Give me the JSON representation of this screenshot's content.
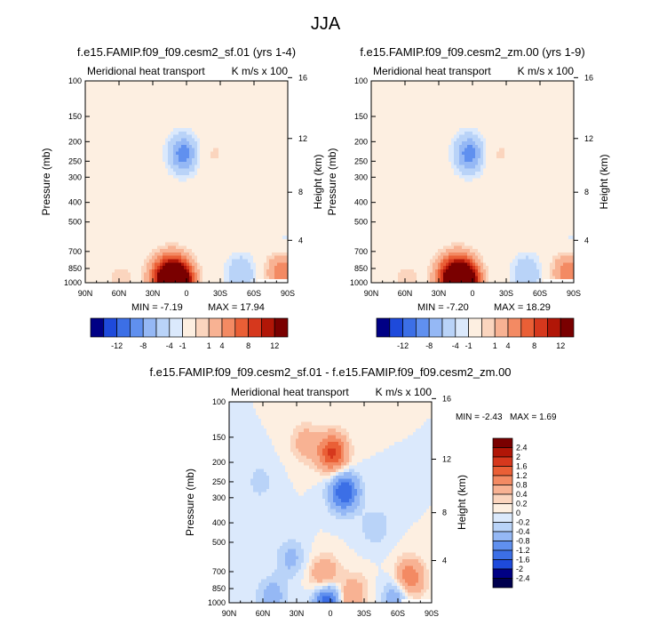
{
  "figure_title": "JJA",
  "chart_data": [
    {
      "type": "heatmap",
      "id": "p1",
      "title": "f.e15.FAMIP.f09_f09.cesm2_sf.01 (yrs 1-4)",
      "left_label": "Meridional heat transport",
      "right_label": "K m/s x 100",
      "xlabel": "",
      "ylabel": "Pressure (mb)",
      "ylabel_right": "Height (km)",
      "x_ticks": [
        "90N",
        "60N",
        "30N",
        "0",
        "30S",
        "60S",
        "90S"
      ],
      "xlim": [
        90,
        -90
      ],
      "y_ticks": [
        "100",
        "150",
        "200",
        "250",
        "300",
        "400",
        "500",
        "700",
        "850",
        "1000"
      ],
      "ylim": [
        100,
        1000
      ],
      "y_right_ticks": [
        "16",
        "12",
        "8",
        "4"
      ],
      "min_text": "MIN =  -7.19",
      "max_text": "MAX =  17.94",
      "features": [
        {
          "lat": 7,
          "p": 1000,
          "value": 17.9
        },
        {
          "lat": 20,
          "p": 950,
          "value": 10
        },
        {
          "lat": 12,
          "p": 880,
          "value": 5
        },
        {
          "lat": 3,
          "p": 230,
          "value": -7.2
        },
        {
          "lat": -23,
          "p": 230,
          "value": 1.2
        },
        {
          "lat": -48,
          "p": 900,
          "value": -4
        },
        {
          "lat": -85,
          "p": 880,
          "value": 6
        },
        {
          "lat": -88,
          "p": 650,
          "value": -1.5
        },
        {
          "lat": 58,
          "p": 970,
          "value": 1.5
        },
        {
          "lat": -15,
          "p": 450,
          "value": 0.6
        },
        {
          "lat": -70,
          "p": 400,
          "value": 0.5
        },
        {
          "lat": 70,
          "p": 200,
          "value": 0.6
        }
      ]
    },
    {
      "type": "heatmap",
      "id": "p2",
      "title": "f.e15.FAMIP.f09_f09.cesm2_zm.00 (yrs 1-9)",
      "left_label": "Meridional heat transport",
      "right_label": "K m/s x 100",
      "xlabel": "",
      "ylabel": "Pressure (mb)",
      "ylabel_right": "Height (km)",
      "x_ticks": [
        "90N",
        "60N",
        "30N",
        "0",
        "30S",
        "60S",
        "90S"
      ],
      "xlim": [
        90,
        -90
      ],
      "y_ticks": [
        "100",
        "150",
        "200",
        "250",
        "300",
        "400",
        "500",
        "700",
        "850",
        "1000"
      ],
      "ylim": [
        100,
        1000
      ],
      "y_right_ticks": [
        "16",
        "12",
        "8",
        "4"
      ],
      "min_text": "MIN =  -7.20",
      "max_text": "MAX =  18.29",
      "features": [
        {
          "lat": 7,
          "p": 1000,
          "value": 18.3
        },
        {
          "lat": 20,
          "p": 950,
          "value": 10
        },
        {
          "lat": 12,
          "p": 880,
          "value": 5
        },
        {
          "lat": 3,
          "p": 230,
          "value": -7.2
        },
        {
          "lat": -23,
          "p": 230,
          "value": 1.2
        },
        {
          "lat": -48,
          "p": 900,
          "value": -4
        },
        {
          "lat": -85,
          "p": 880,
          "value": 6
        },
        {
          "lat": -88,
          "p": 650,
          "value": -1.5
        },
        {
          "lat": 58,
          "p": 970,
          "value": 1.5
        },
        {
          "lat": -15,
          "p": 450,
          "value": 0.6
        },
        {
          "lat": -70,
          "p": 400,
          "value": 0.5
        },
        {
          "lat": 70,
          "p": 200,
          "value": 0.6
        }
      ]
    },
    {
      "type": "heatmap",
      "id": "p3",
      "title": "f.e15.FAMIP.f09_f09.cesm2_sf.01 - f.e15.FAMIP.f09_f09.cesm2_zm.00",
      "left_label": "Meridional heat transport",
      "right_label": "K m/s x 100",
      "xlabel": "",
      "ylabel": "Pressure (mb)",
      "ylabel_right": "Height (km)",
      "x_ticks": [
        "90N",
        "60N",
        "30N",
        "0",
        "30S",
        "60S",
        "90S"
      ],
      "xlim": [
        90,
        -90
      ],
      "y_ticks": [
        "100",
        "150",
        "200",
        "250",
        "300",
        "400",
        "500",
        "700",
        "850",
        "1000"
      ],
      "ylim": [
        100,
        1000
      ],
      "y_right_ticks": [
        "16",
        "12",
        "8",
        "4"
      ],
      "min_text": "MIN =  -2.43",
      "max_text": "MAX =   1.69",
      "features": [
        {
          "lat": -2,
          "p": 180,
          "value": 1.7
        },
        {
          "lat": 22,
          "p": 160,
          "value": 0.6
        },
        {
          "lat": -12,
          "p": 280,
          "value": -1.6
        },
        {
          "lat": 5,
          "p": 740,
          "value": 1.0
        },
        {
          "lat": 0,
          "p": 980,
          "value": -2.4
        },
        {
          "lat": -8,
          "p": 1000,
          "value": 1.2
        },
        {
          "lat": -70,
          "p": 760,
          "value": 1.3
        },
        {
          "lat": -60,
          "p": 920,
          "value": -0.8
        },
        {
          "lat": 52,
          "p": 930,
          "value": -0.6
        },
        {
          "lat": 35,
          "p": 600,
          "value": -0.5
        },
        {
          "lat": -40,
          "p": 420,
          "value": -0.4
        },
        {
          "lat": 62,
          "p": 250,
          "value": -0.3
        },
        {
          "lat": -22,
          "p": 880,
          "value": 0.5
        }
      ]
    }
  ],
  "colorbar_main": {
    "orientation": "horizontal",
    "labels": [
      "-12",
      "-8",
      "-4",
      "-1",
      "1",
      "4",
      "8",
      "12"
    ],
    "colors": [
      "#000085",
      "#1e4adb",
      "#3c6fe6",
      "#6090ef",
      "#95b8f5",
      "#b9d3f8",
      "#dbe9fc",
      "#fdefe1",
      "#fbd5be",
      "#f8b293",
      "#f38a63",
      "#ea5f36",
      "#d6381d",
      "#b11607",
      "#7a0000"
    ]
  },
  "colorbar_diff": {
    "orientation": "vertical",
    "labels": [
      "2.4",
      "2",
      "1.6",
      "1.2",
      "0.8",
      "0.4",
      "0.2",
      "0",
      "-0.2",
      "-0.4",
      "-0.8",
      "-1.2",
      "-1.6",
      "-2",
      "-2.4"
    ],
    "colors": [
      "#7a0000",
      "#b11607",
      "#d6381d",
      "#ea5f36",
      "#f38a63",
      "#f8b293",
      "#fbd5be",
      "#fdefe1",
      "#dbe9fc",
      "#b9d3f8",
      "#95b8f5",
      "#6090ef",
      "#3c6fe6",
      "#1e4adb",
      "#000085",
      "#00004f"
    ]
  }
}
